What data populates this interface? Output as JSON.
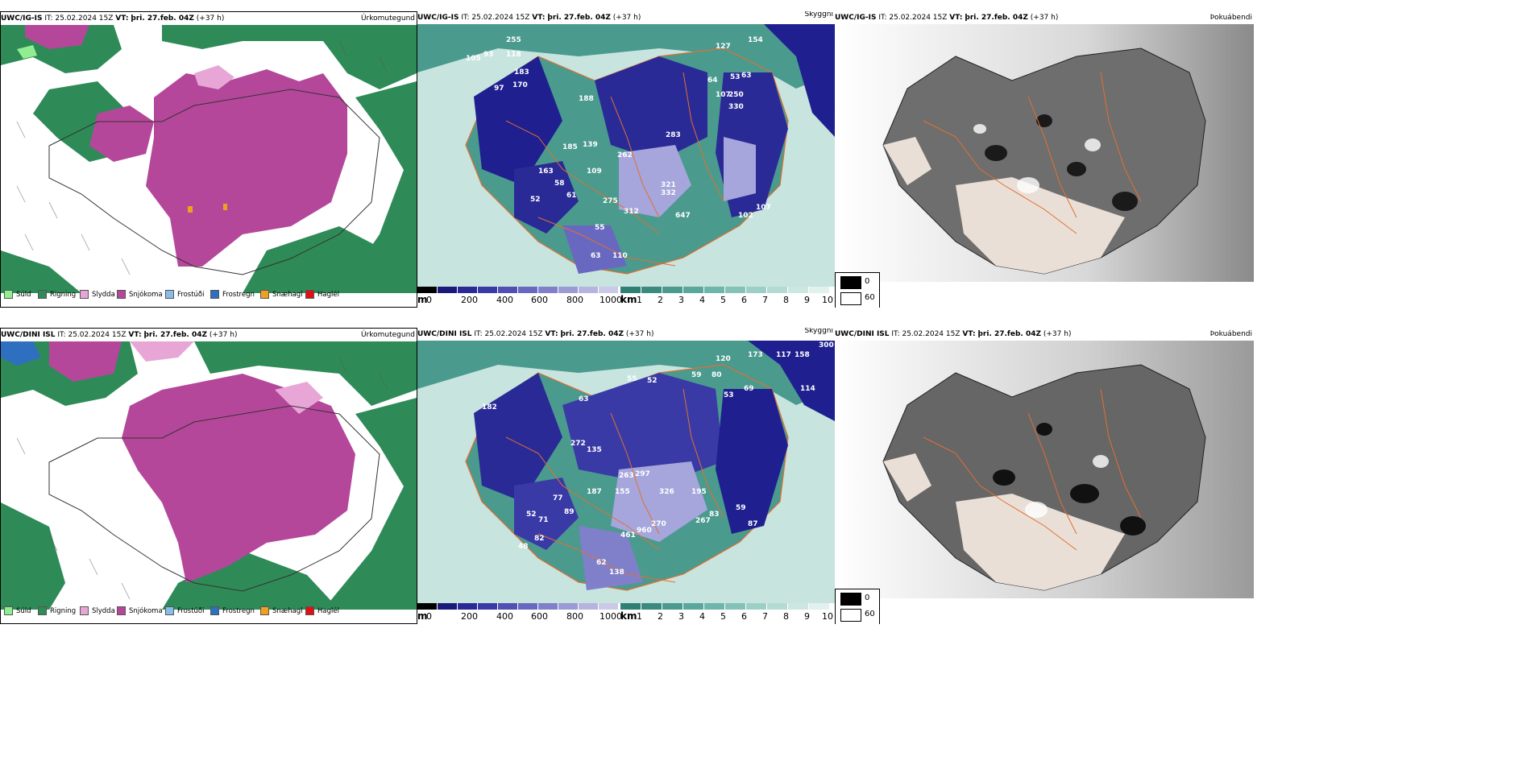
{
  "colors": {
    "green": "#2e8b57",
    "magenta": "#b5479b",
    "light_pink": "#e8a6d6",
    "light_green": "#90ee90",
    "teal": "#4a9a8e",
    "pale_teal": "#c8e4df",
    "navy": "#1f1f8f",
    "lavender": "#a6a6dc",
    "orange": "#e07030",
    "gray_land": "#6e6e6e"
  },
  "rows": [
    {
      "model": "UWC/IG-IS",
      "it_label": "IT:",
      "it_value": "25.02.2024 15Z",
      "vt_label": "VT:",
      "vt_value": "þri. 27.feb. 04Z",
      "lead": "(+37 h)"
    },
    {
      "model": "UWC/DINI ISL",
      "it_label": "IT:",
      "it_value": "25.02.2024 15Z",
      "vt_label": "VT:",
      "vt_value": "þri. 27.feb. 04Z",
      "lead": "(+37 h)"
    }
  ],
  "panel_titles": {
    "precip": "Úrkomutegund",
    "visibility": "Skyggni",
    "fog": "Þokuábendi"
  },
  "precip_legend": [
    {
      "label": "Súld",
      "color": "#90ee90"
    },
    {
      "label": "Rigning",
      "color": "#2e8b57"
    },
    {
      "label": "Slydda",
      "color": "#e8a6d6"
    },
    {
      "label": "Snjókoma",
      "color": "#b5479b"
    },
    {
      "label": "Frostúði",
      "color": "#87bde8"
    },
    {
      "label": "Frostregn",
      "color": "#2f6fc0"
    },
    {
      "label": "Snæhagl",
      "color": "#f0a020"
    },
    {
      "label": "Haglél",
      "color": "#e01010"
    }
  ],
  "visibility_m_bar": {
    "unit": "m",
    "ticks": [
      "0",
      "200",
      "400",
      "600",
      "800",
      "1000"
    ],
    "colors": [
      "#000000",
      "#1a1a7a",
      "#2a2a96",
      "#3a3aa6",
      "#5050b4",
      "#6868c0",
      "#8080ca",
      "#9a9ad4",
      "#b4b4de",
      "#cacae8"
    ]
  },
  "visibility_km_bar": {
    "unit": "km",
    "ticks": [
      "1",
      "2",
      "3",
      "4",
      "5",
      "6",
      "7",
      "8",
      "9",
      "10"
    ],
    "colors": [
      "#2f7f74",
      "#3b8a7f",
      "#4a9a8e",
      "#5aa79b",
      "#6eb5aa",
      "#84c2b8",
      "#9ccfc6",
      "#b4dbd3",
      "#cce6e0",
      "#e2f1ee"
    ]
  },
  "fog_scale": {
    "top_label": "0",
    "bottom_label": "60"
  },
  "station_labels_top": [
    "255",
    "93",
    "118",
    "105",
    "183",
    "170",
    "97",
    "127",
    "154",
    "64",
    "53",
    "63",
    "250",
    "330",
    "188",
    "107",
    "185",
    "139",
    "262",
    "109",
    "163",
    "58",
    "52",
    "61",
    "275",
    "312",
    "55",
    "110",
    "63",
    "283",
    "321",
    "332",
    "647",
    "102",
    "107"
  ],
  "station_labels_bottom": [
    "120",
    "173",
    "117",
    "158",
    "300",
    "114",
    "80",
    "53",
    "69",
    "55",
    "52",
    "59",
    "63",
    "182",
    "272",
    "135",
    "263",
    "297",
    "187",
    "155",
    "77",
    "71",
    "52",
    "89",
    "82",
    "48",
    "461",
    "62",
    "138",
    "960",
    "270",
    "326",
    "195",
    "267",
    "59",
    "83",
    "87"
  ]
}
